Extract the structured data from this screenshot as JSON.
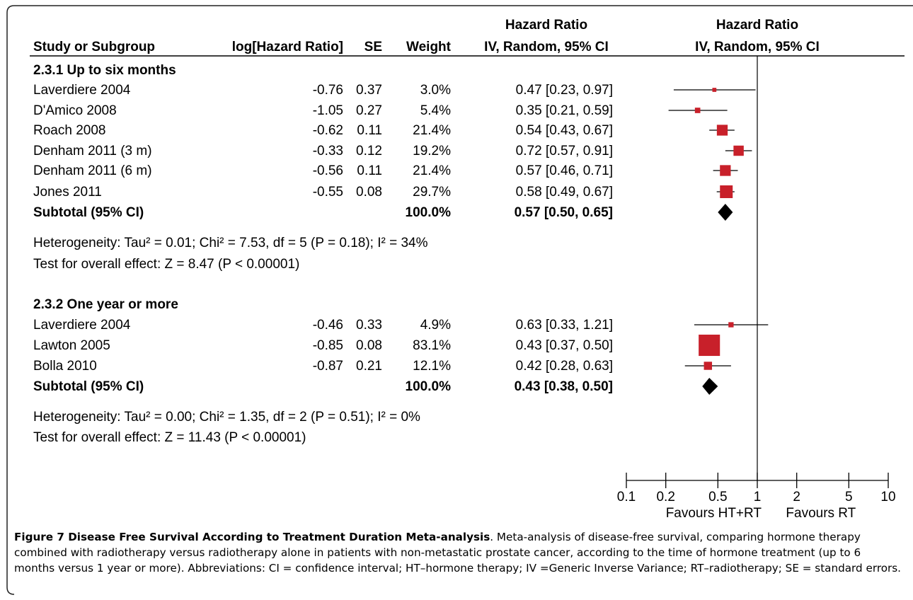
{
  "header": {
    "study": "Study or Subgroup",
    "loghr": "log[Hazard Ratio]",
    "se": "SE",
    "weight": "Weight",
    "hr_title": "Hazard Ratio",
    "hr_method": "IV, Random, 95% CI",
    "plot_title": "Hazard Ratio",
    "plot_method": "IV, Random, 95% CI"
  },
  "chart_data": {
    "type": "forest",
    "x_scale": "log",
    "xlim": [
      0.1,
      10
    ],
    "null_line": 1,
    "ticks": [
      "0.1",
      "0.2",
      "0.5",
      "1",
      "2",
      "5",
      "10"
    ],
    "tick_values": [
      0.1,
      0.2,
      0.5,
      1,
      2,
      5,
      10
    ],
    "favours_left": "Favours HT+RT",
    "favours_right": "Favours RT",
    "marker_color": "#c8202a",
    "subgroups": [
      {
        "title": "2.3.1 Up to six months",
        "studies": [
          {
            "name": "Laverdiere 2004",
            "loghr": "-0.76",
            "se": "0.37",
            "weight": "3.0%",
            "hr_text": "0.47 [0.23, 0.97]",
            "hr": 0.47,
            "lo": 0.23,
            "hi": 0.97,
            "w": 3.0
          },
          {
            "name": "D'Amico 2008",
            "loghr": "-1.05",
            "se": "0.27",
            "weight": "5.4%",
            "hr_text": "0.35 [0.21, 0.59]",
            "hr": 0.35,
            "lo": 0.21,
            "hi": 0.59,
            "w": 5.4
          },
          {
            "name": "Roach 2008",
            "loghr": "-0.62",
            "se": "0.11",
            "weight": "21.4%",
            "hr_text": "0.54 [0.43, 0.67]",
            "hr": 0.54,
            "lo": 0.43,
            "hi": 0.67,
            "w": 21.4
          },
          {
            "name": "Denham 2011 (3 m)",
            "loghr": "-0.33",
            "se": "0.12",
            "weight": "19.2%",
            "hr_text": "0.72 [0.57, 0.91]",
            "hr": 0.72,
            "lo": 0.57,
            "hi": 0.91,
            "w": 19.2
          },
          {
            "name": "Denham 2011 (6 m)",
            "loghr": "-0.56",
            "se": "0.11",
            "weight": "21.4%",
            "hr_text": "0.57 [0.46, 0.71]",
            "hr": 0.57,
            "lo": 0.46,
            "hi": 0.71,
            "w": 21.4
          },
          {
            "name": "Jones 2011",
            "loghr": "-0.55",
            "se": "0.08",
            "weight": "29.7%",
            "hr_text": "0.58 [0.49, 0.67]",
            "hr": 0.58,
            "lo": 0.49,
            "hi": 0.67,
            "w": 29.7
          }
        ],
        "subtotal": {
          "label": "Subtotal (95% CI)",
          "weight": "100.0%",
          "hr_text": "0.57 [0.50, 0.65]",
          "hr": 0.57,
          "lo": 0.5,
          "hi": 0.65
        },
        "heterogeneity": "Heterogeneity: Tau² = 0.01; Chi² = 7.53, df = 5 (P = 0.18); I² = 34%",
        "overall": "Test for overall effect: Z = 8.47 (P < 0.00001)"
      },
      {
        "title": "2.3.2 One year or more",
        "studies": [
          {
            "name": "Laverdiere 2004",
            "loghr": "-0.46",
            "se": "0.33",
            "weight": "4.9%",
            "hr_text": "0.63 [0.33, 1.21]",
            "hr": 0.63,
            "lo": 0.33,
            "hi": 1.21,
            "w": 4.9
          },
          {
            "name": "Lawton 2005",
            "loghr": "-0.85",
            "se": "0.08",
            "weight": "83.1%",
            "hr_text": "0.43 [0.37, 0.50]",
            "hr": 0.43,
            "lo": 0.37,
            "hi": 0.5,
            "w": 83.1
          },
          {
            "name": "Bolla 2010",
            "loghr": "-0.87",
            "se": "0.21",
            "weight": "12.1%",
            "hr_text": "0.42 [0.28, 0.63]",
            "hr": 0.42,
            "lo": 0.28,
            "hi": 0.63,
            "w": 12.1
          }
        ],
        "subtotal": {
          "label": "Subtotal (95% CI)",
          "weight": "100.0%",
          "hr_text": "0.43 [0.38, 0.50]",
          "hr": 0.43,
          "lo": 0.38,
          "hi": 0.5
        },
        "heterogeneity": "Heterogeneity: Tau² = 0.00; Chi² = 1.35, df = 2 (P = 0.51); I² = 0%",
        "overall": "Test for overall effect: Z = 11.43 (P < 0.00001)"
      }
    ]
  },
  "caption": {
    "title": "Figure 7 Disease Free Survival According to Treatment Duration Meta-analysis",
    "text": ". Meta-analysis of disease-free survival, comparing hormone therapy combined with radiotherapy versus radiotherapy alone in patients with non-metastatic prostate cancer, according to the time of hormone treatment (up to 6 months versus 1 year or more). Abbreviations: CI = confidence interval; HT–hormone therapy; IV =Generic Inverse Variance; RT–radiotherapy; SE = standard errors."
  }
}
